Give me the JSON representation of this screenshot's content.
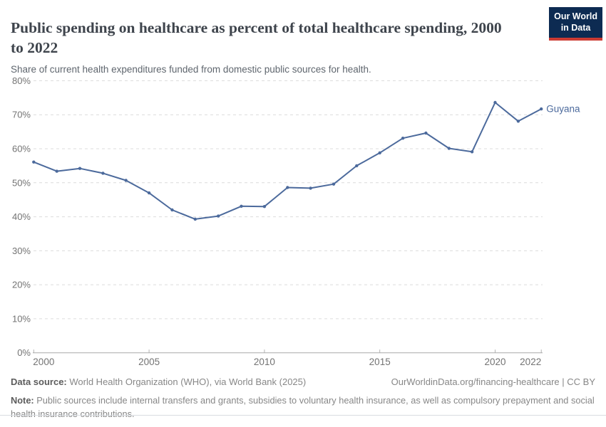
{
  "header": {
    "title": "Public spending on healthcare as percent of total healthcare spending, 2000 to 2022",
    "subtitle": "Share of current health expenditures funded from domestic public sources for health."
  },
  "logo": {
    "line1": "Our World",
    "line2": "in Data",
    "bg_color": "#0d2b52",
    "stripe_color": "#cc3b33"
  },
  "chart_data": {
    "type": "line",
    "title": "Public spending on healthcare as percent of total healthcare spending, 2000 to 2022",
    "xlabel": "",
    "ylabel": "",
    "x": [
      2000,
      2001,
      2002,
      2003,
      2004,
      2005,
      2006,
      2007,
      2008,
      2009,
      2010,
      2011,
      2012,
      2013,
      2014,
      2015,
      2016,
      2017,
      2018,
      2019,
      2020,
      2021,
      2022
    ],
    "series": [
      {
        "name": "Guyana",
        "color": "#4C6A9C",
        "values": [
          56.1,
          53.4,
          54.2,
          52.8,
          50.7,
          47.0,
          42.0,
          39.3,
          40.2,
          43.1,
          43.0,
          48.6,
          48.4,
          49.6,
          55.0,
          58.8,
          63.1,
          64.6,
          60.1,
          59.1,
          73.6,
          68.1,
          71.7
        ]
      }
    ],
    "ylim": [
      0,
      80
    ],
    "yticks": [
      0,
      10,
      20,
      30,
      40,
      50,
      60,
      70,
      80
    ],
    "ytick_suffix": "%",
    "xticks": [
      2000,
      2005,
      2010,
      2015,
      2020,
      2022
    ],
    "grid": "horizontal-dashed",
    "legend_position": "end-of-line-label"
  },
  "footer": {
    "source_label": "Data source:",
    "source_text": " World Health Organization (WHO), via World Bank (2025)",
    "link": "OurWorldinData.org/financing-healthcare | CC BY",
    "note_label": "Note:",
    "note_text": " Public sources include internal transfers and grants, subsidies to voluntary health insurance, as well as compulsory prepayment and social health insurance contributions."
  }
}
